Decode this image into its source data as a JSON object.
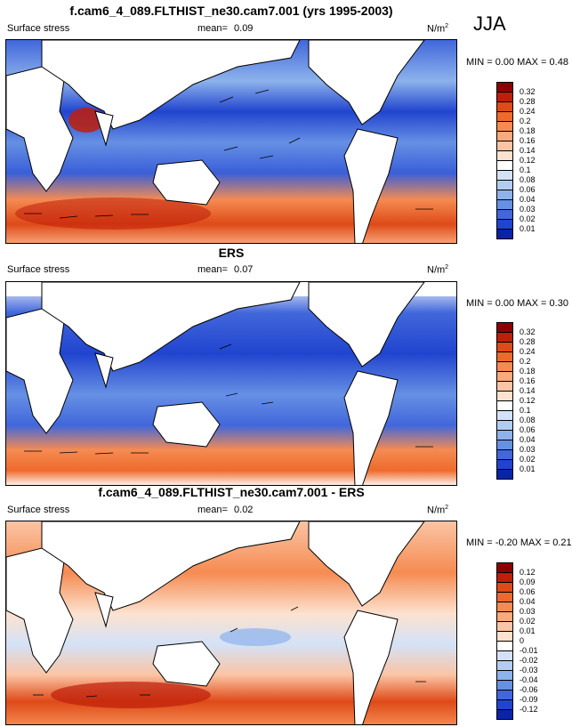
{
  "season": "JJA",
  "panels": [
    {
      "title": "f.cam6_4_089.FLTHIST_ne30.cam7.001 (yrs 1995-2003)",
      "variable": "Surface stress",
      "mean_label": "mean=",
      "mean": "0.09",
      "units": "N/m",
      "units_sup": "2",
      "minmax": "MIN =  0.00 MAX =  0.48"
    },
    {
      "title": "ERS",
      "variable": "Surface stress",
      "mean_label": "mean=",
      "mean": "0.07",
      "units": "N/m",
      "units_sup": "2",
      "minmax": "MIN =  0.00 MAX =  0.30"
    },
    {
      "title": "f.cam6_4_089.FLTHIST_ne30.cam7.001 - ERS",
      "variable": "Surface stress",
      "mean_label": "mean=",
      "mean": "0.02",
      "units": "N/m",
      "units_sup": "2",
      "minmax": "MIN = -0.20 MAX =  0.21"
    }
  ],
  "colorbars": {
    "absolute": {
      "labels": [
        "0.32",
        "0.28",
        "0.24",
        "0.2",
        "0.18",
        "0.16",
        "0.14",
        "0.12",
        "0.1",
        "0.08",
        "0.06",
        "0.04",
        "0.03",
        "0.02",
        "0.01"
      ],
      "colors": [
        "#8b0000",
        "#bf1e0a",
        "#de4a18",
        "#ee6a2c",
        "#f58b52",
        "#f9a97c",
        "#fbc4a4",
        "#fde2cf",
        "#ffffff",
        "#d3e2f7",
        "#b3cdf2",
        "#8db2ec",
        "#6690e4",
        "#4167db",
        "#2144cf",
        "#0a24a8"
      ]
    },
    "difference": {
      "labels": [
        "0.12",
        "0.09",
        "0.06",
        "0.04",
        "0.03",
        "0.02",
        "0.01",
        "0",
        "-0.01",
        "-0.02",
        "-0.03",
        "-0.04",
        "-0.06",
        "-0.09",
        "-0.12"
      ],
      "colors": [
        "#8b0000",
        "#bf1e0a",
        "#de4a18",
        "#ee6a2c",
        "#f58b52",
        "#f9a97c",
        "#fbc4a4",
        "#fde2cf",
        "#ffffff",
        "#d3e2f7",
        "#b3cdf2",
        "#8db2ec",
        "#6690e4",
        "#4167db",
        "#2144cf",
        "#0a24a8"
      ]
    }
  }
}
